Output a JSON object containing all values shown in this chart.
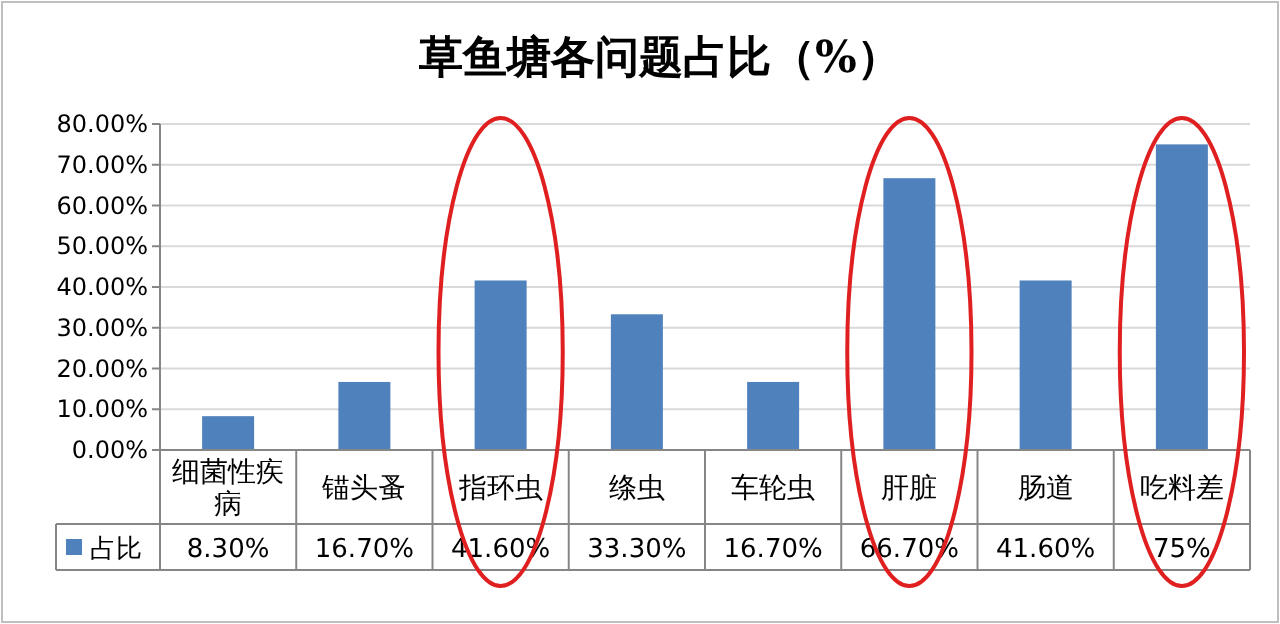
{
  "chart_data": {
    "type": "bar",
    "title": "草鱼塘各问题占比（%）",
    "categories": [
      "细菌性疾病",
      "锚头蚤",
      "指环虫",
      "绦虫",
      "车轮虫",
      "肝脏",
      "肠道",
      "吃料差"
    ],
    "series": [
      {
        "name": "占比",
        "color": "#4f81bd",
        "values": [
          8.3,
          16.7,
          41.6,
          33.3,
          16.7,
          66.7,
          41.6,
          75
        ],
        "value_labels": [
          "8.30%",
          "16.70%",
          "41.60%",
          "33.30%",
          "16.70%",
          "66.70%",
          "41.60%",
          "75%"
        ]
      }
    ],
    "ylim": [
      0,
      80
    ],
    "yticks": [
      {
        "value": 0,
        "label": "0.00%"
      },
      {
        "value": 10,
        "label": "10.00%"
      },
      {
        "value": 20,
        "label": "20.00%"
      },
      {
        "value": 30,
        "label": "30.00%"
      },
      {
        "value": 40,
        "label": "40.00%"
      },
      {
        "value": 50,
        "label": "50.00%"
      },
      {
        "value": 60,
        "label": "60.00%"
      },
      {
        "value": 70,
        "label": "70.00%"
      },
      {
        "value": 80,
        "label": "80.00%"
      }
    ],
    "grid": "y",
    "legend": "bottom"
  }
}
